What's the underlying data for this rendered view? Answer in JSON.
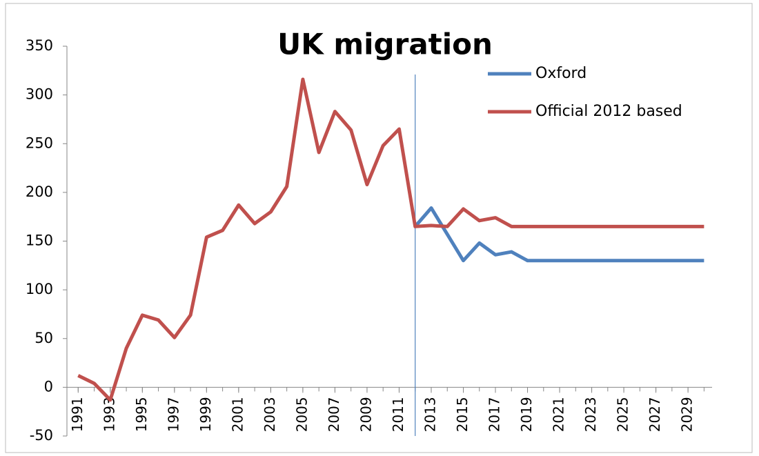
{
  "chart_data": {
    "type": "line",
    "title": "UK migration",
    "x": [
      1991,
      1992,
      1993,
      1994,
      1995,
      1996,
      1997,
      1998,
      1999,
      2000,
      2001,
      2002,
      2003,
      2004,
      2005,
      2006,
      2007,
      2008,
      2009,
      2010,
      2011,
      2012,
      2013,
      2014,
      2015,
      2016,
      2017,
      2018,
      2019,
      2020,
      2021,
      2022,
      2023,
      2024,
      2025,
      2026,
      2027,
      2028,
      2029,
      2030
    ],
    "series": [
      {
        "name": "Oxford",
        "color": "#4f81bd",
        "values": [
          null,
          null,
          null,
          null,
          null,
          null,
          null,
          null,
          null,
          null,
          null,
          null,
          null,
          null,
          null,
          null,
          null,
          null,
          null,
          null,
          null,
          165,
          184,
          157,
          130,
          148,
          136,
          139,
          130,
          130,
          130,
          130,
          130,
          130,
          130,
          130,
          130,
          130,
          130,
          130
        ]
      },
      {
        "name": "Official 2012 based",
        "color": "#c0504d",
        "values": [
          12,
          4,
          -13,
          40,
          74,
          69,
          51,
          74,
          154,
          161,
          187,
          168,
          180,
          206,
          316,
          241,
          283,
          264,
          208,
          248,
          265,
          165,
          166,
          165,
          183,
          171,
          174,
          165,
          165,
          165,
          165,
          165,
          165,
          165,
          165,
          165,
          165,
          165,
          165,
          165
        ]
      }
    ],
    "xlim": [
      1990.3,
      2030.5
    ],
    "xticks": [
      1991,
      1993,
      1995,
      1997,
      1999,
      2001,
      2003,
      2005,
      2007,
      2009,
      2011,
      2013,
      2015,
      2017,
      2019,
      2021,
      2023,
      2025,
      2027,
      2029
    ],
    "ylim": [
      -50,
      350
    ],
    "yticks": [
      -50,
      0,
      50,
      100,
      150,
      200,
      250,
      300,
      350
    ],
    "vline_x": 2012,
    "legend": "top-right"
  }
}
